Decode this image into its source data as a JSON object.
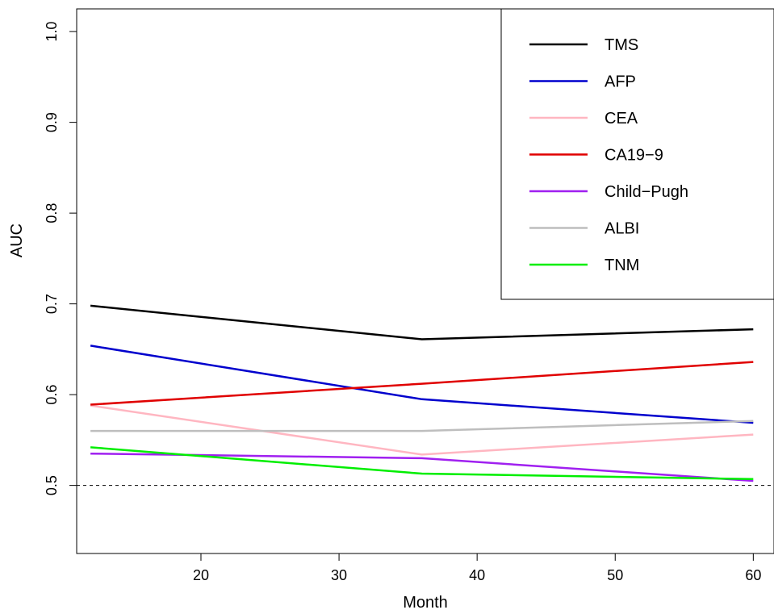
{
  "chart_data": {
    "type": "line",
    "title": "",
    "xlabel": "Month",
    "ylabel": "AUC",
    "xlim": [
      11,
      61.5
    ],
    "ylim": [
      0.425,
      1.025
    ],
    "x_ticks": [
      20,
      30,
      40,
      50,
      60
    ],
    "y_ticks": [
      0.5,
      0.6,
      0.7,
      0.8,
      0.9,
      1.0
    ],
    "x_tick_labels": [
      "20",
      "30",
      "40",
      "50",
      "60"
    ],
    "y_tick_labels": [
      "0.5",
      "0.6",
      "0.7",
      "0.8",
      "0.9",
      "1.0"
    ],
    "x": [
      12,
      36,
      60
    ],
    "series": [
      {
        "name": "TMS",
        "color": "#000000",
        "values": [
          0.698,
          0.661,
          0.672
        ]
      },
      {
        "name": "AFP",
        "color": "#0000CD",
        "values": [
          0.654,
          0.595,
          0.569
        ]
      },
      {
        "name": "CEA",
        "color": "#FFB6C1",
        "values": [
          0.588,
          0.534,
          0.556
        ]
      },
      {
        "name": "CA19−9",
        "color": "#E00000",
        "values": [
          0.589,
          0.612,
          0.636
        ]
      },
      {
        "name": "Child−Pugh",
        "color": "#A020F0",
        "values": [
          0.535,
          0.53,
          0.505
        ]
      },
      {
        "name": "ALBI",
        "color": "#BEBEBE",
        "values": [
          0.56,
          0.56,
          0.571
        ]
      },
      {
        "name": "TNM",
        "color": "#00EE00",
        "values": [
          0.542,
          0.513,
          0.507
        ]
      }
    ],
    "reference_line": {
      "y": 0.5,
      "style": "dashed"
    },
    "legend_position": "top-right",
    "grid": false
  }
}
